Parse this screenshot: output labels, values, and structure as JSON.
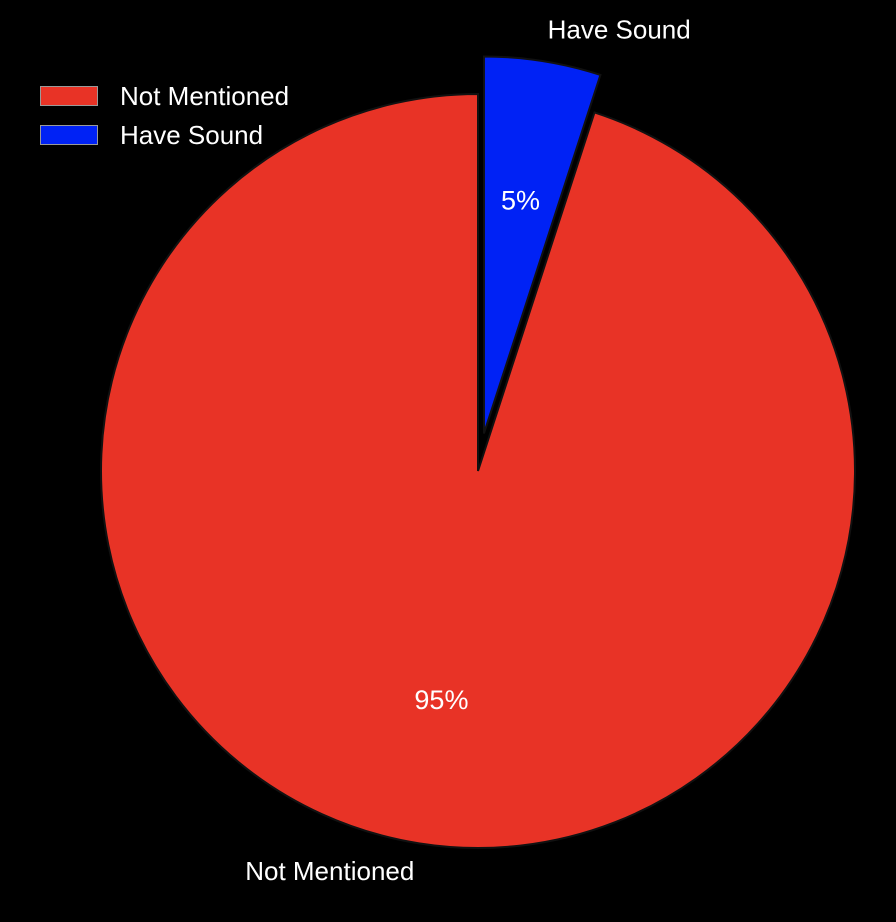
{
  "chart_data": {
    "type": "pie",
    "title": "",
    "categories": [
      "Not Mentioned",
      "Have Sound"
    ],
    "values": [
      95,
      5
    ],
    "unit": "%",
    "colors": [
      "#e83326",
      "#0022f5"
    ],
    "data_labels": [
      "95%",
      "5%"
    ],
    "exploded": [
      false,
      true
    ],
    "legend_position": "top-left",
    "label_position": "outside",
    "legend": {
      "items": [
        {
          "label": "Not Mentioned",
          "color": "#e83326"
        },
        {
          "label": "Have Sound",
          "color": "#0022f5"
        }
      ]
    }
  }
}
